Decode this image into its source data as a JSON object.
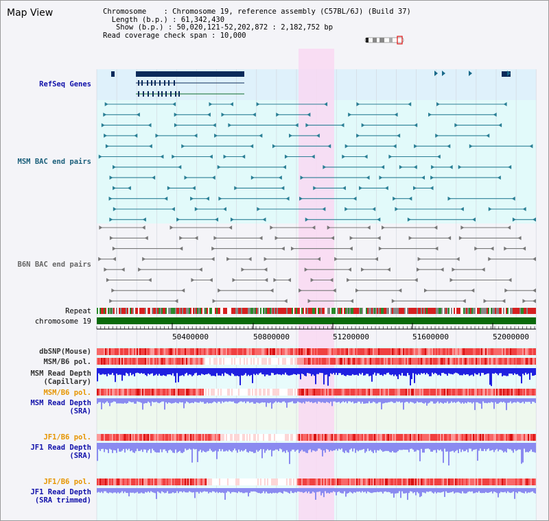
{
  "title": "Map View",
  "info": {
    "chromosome_key": "Chromosome",
    "chromosome_val": "Chromosome 19, reference assembly (C57BL/6J) (Build 37)",
    "length_key": "Length (b.p.)",
    "length_val": "61,342,430",
    "show_key": "Show (b.p.)",
    "show_val": "50,020,121-52,202,872 : 2,182,752 bp",
    "span_key": "Read coverage check span",
    "span_val": "10,000"
  },
  "tracks": {
    "refseq": "RefSeq Genes",
    "msm_bac": "MSM BAC end pairs",
    "b6n_bac": "B6N BAC end pairs",
    "repeat": "Repeat",
    "chrom": "chromosome 19",
    "dbsnp": "dbSNP(Mouse)",
    "msm_pol1": "MSM/B6 pol.",
    "msm_depth_cap_1": "MSM Read Depth",
    "msm_depth_cap_2": "(Capillary)",
    "msm_pol2": "MSM/B6 pol.",
    "msm_depth_sra_1": "MSM Read Depth",
    "msm_depth_sra_2": "(SRA)",
    "jf1_pol1": "JF1/B6 pol.",
    "jf1_depth_1": "JF1 Read Depth",
    "jf1_depth_2": "(SRA)",
    "jf1_pol2": "JF1/B6 pol.",
    "jf1_trim_1": "JF1 Read Depth",
    "jf1_trim_2": "(SRA trimmed)"
  },
  "axis_ticks": [
    "50400000",
    "50800000",
    "51200000",
    "51600000",
    "52000000"
  ],
  "colors": {
    "refseq_bg": "#dff1fb",
    "msm_bg": "#e2fafa",
    "highlight": "#f9d8f2",
    "gene": "#0a2a5a",
    "msm_pair": "#2a7f95",
    "b6n_pair": "#777777",
    "chromosome_bar": "#0a6a0a",
    "depth_blue": "#1f1fe0",
    "depth_light": "#8a8af0"
  }
}
